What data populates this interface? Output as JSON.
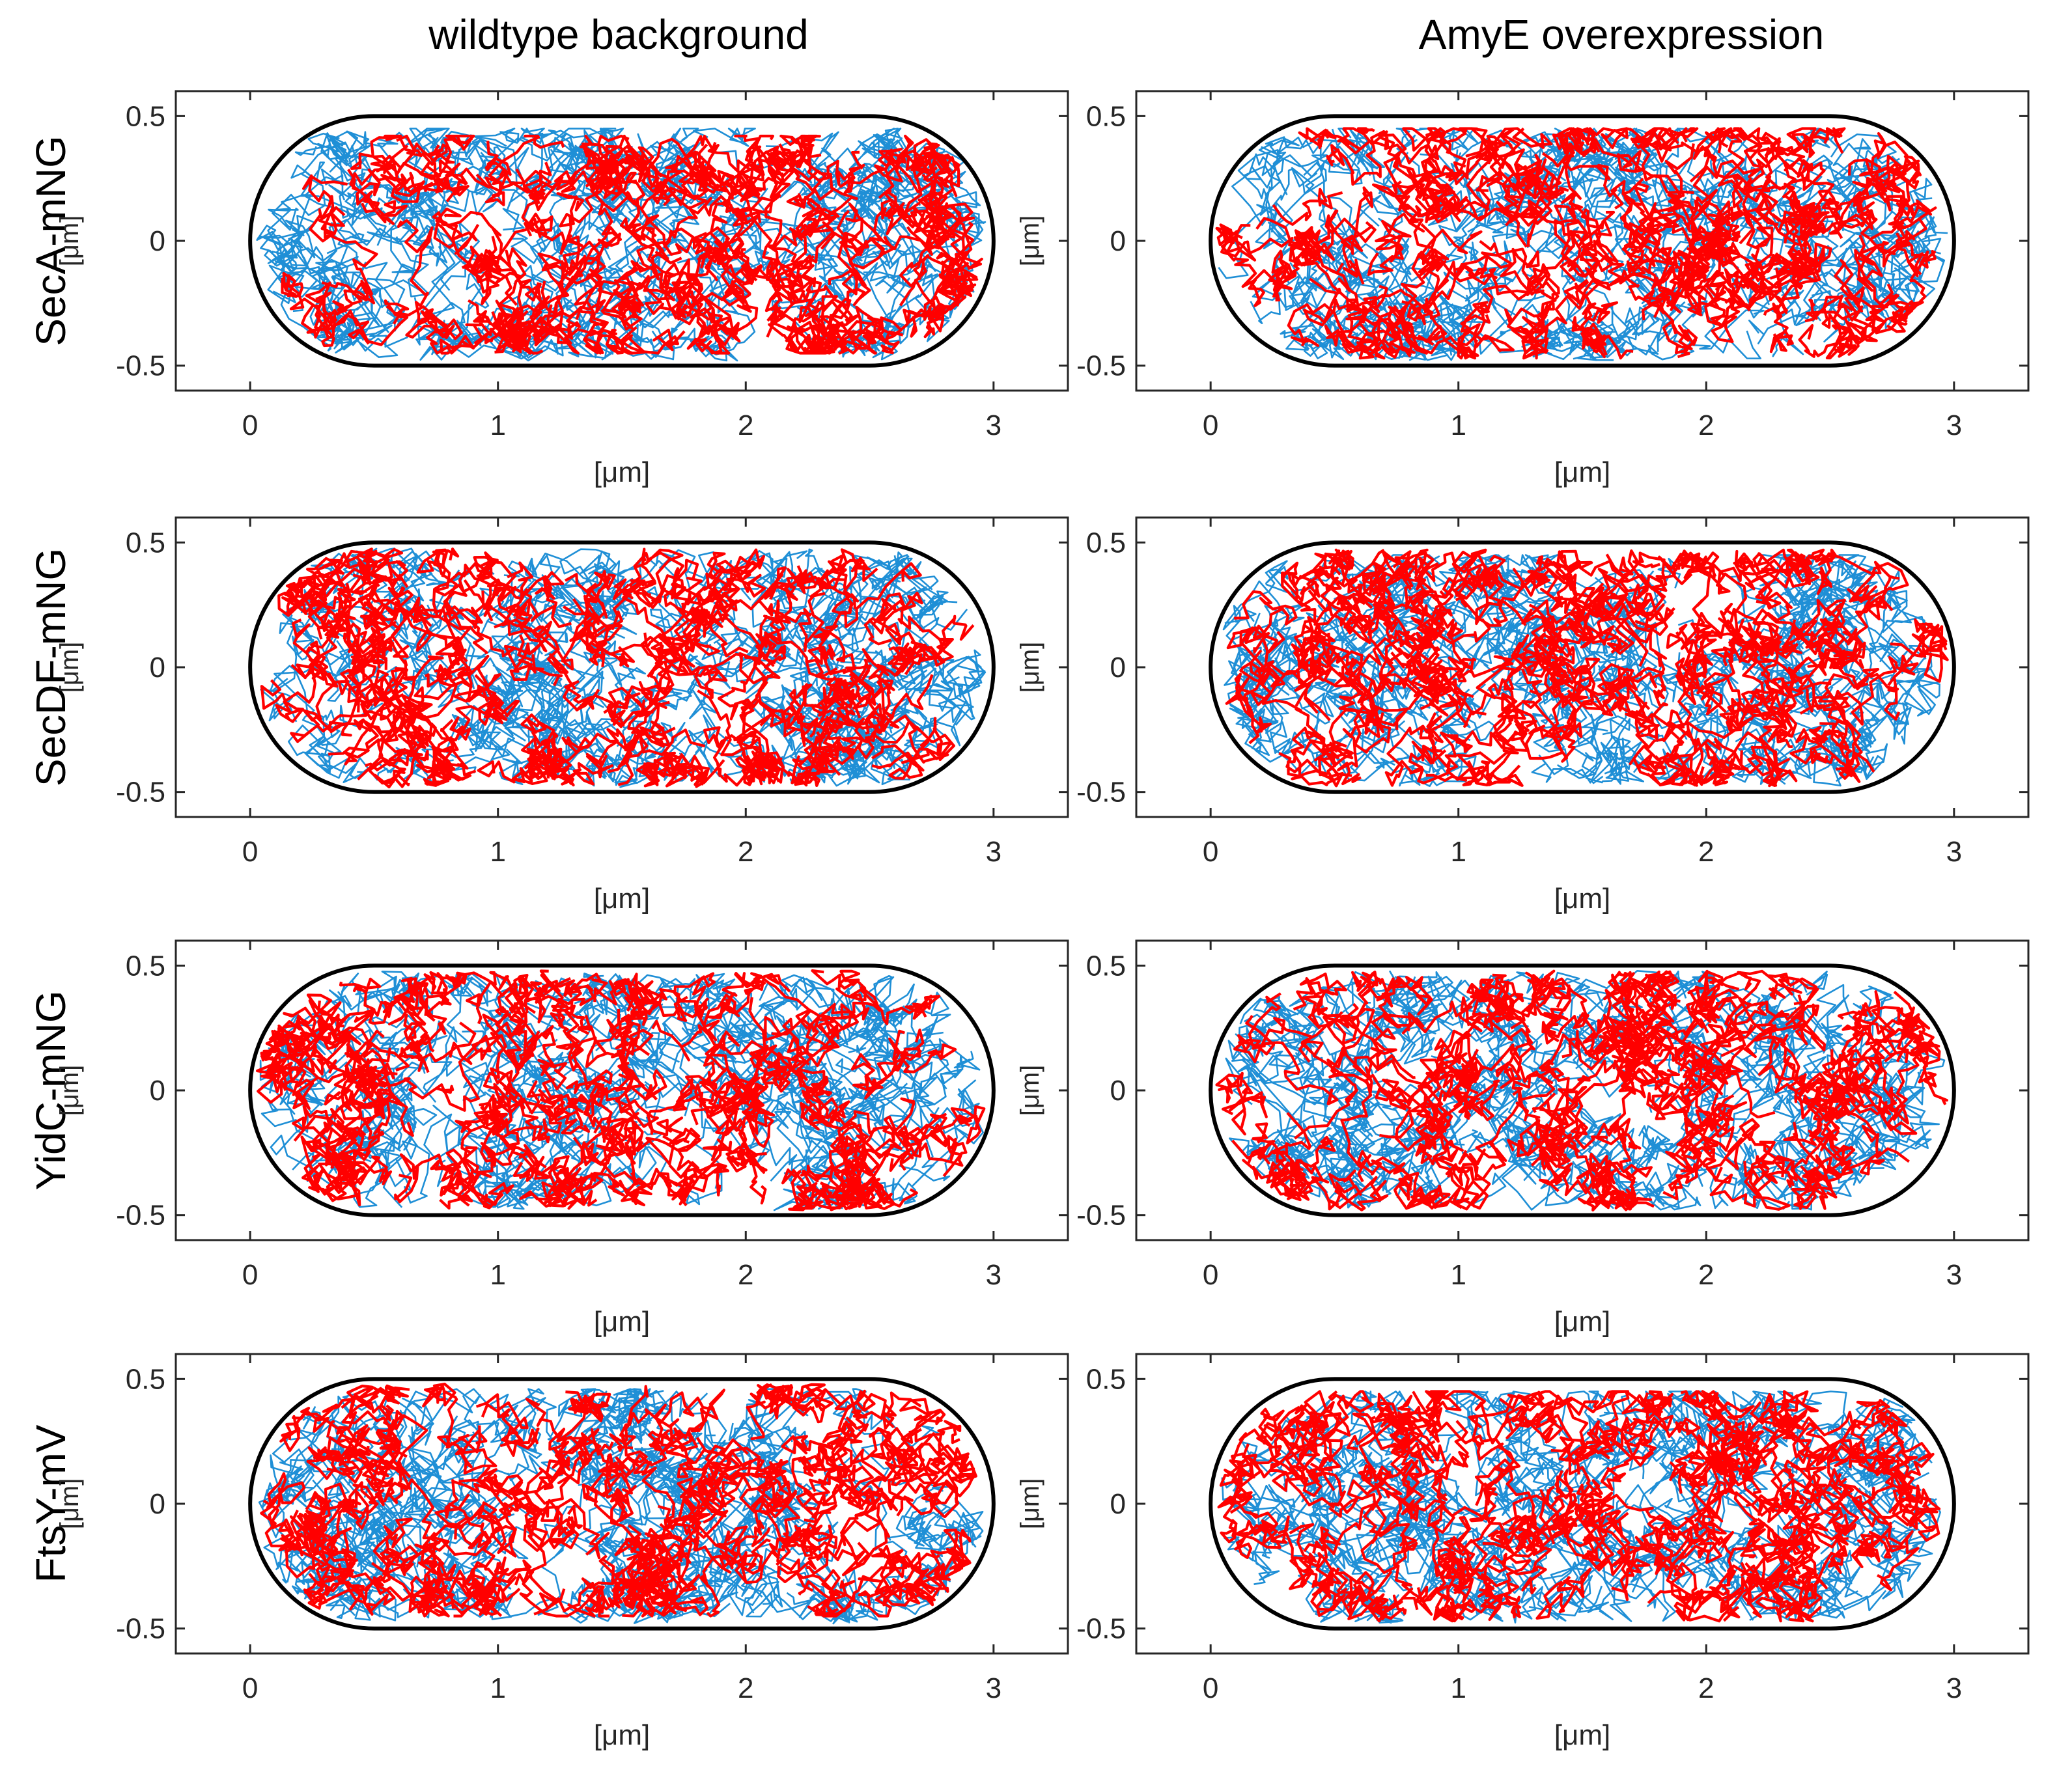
{
  "figure": {
    "column_titles": [
      "wildtype background",
      "AmyE overexpression"
    ],
    "row_labels": [
      "SecA-mNG",
      "SecDF-mNG",
      "YidC-mNG",
      "FtsY-mV"
    ],
    "xlabel": "[μm]",
    "ylabel": "[μm]",
    "colors": {
      "blue": "#1f8fd6",
      "red": "#ff0000",
      "outline": "#000000",
      "axes": "#262626"
    }
  },
  "chart_data": [
    {
      "type": "line",
      "row": "SecA-mNG",
      "column": "wildtype background",
      "xlim": [
        -0.3,
        3.3
      ],
      "ylim": [
        -0.6,
        0.6
      ],
      "xticks": [
        0,
        1,
        2,
        3
      ],
      "yticks": [
        0.5,
        0,
        -0.5
      ],
      "xtick_labels": [
        "0",
        "1",
        "2",
        "3"
      ],
      "ytick_labels": [
        "0.5",
        "0",
        "-0.5"
      ],
      "xlabel": "[μm]",
      "ylabel": "[μm]",
      "cell_outline": {
        "x_range": [
          0,
          3
        ],
        "y_range": [
          -0.5,
          0.5
        ],
        "cap_radius": 0.5
      },
      "series": [
        {
          "name": "blue trajectories",
          "color": "#1f8fd6",
          "x_extent": [
            0.05,
            2.95
          ],
          "y_extent": [
            -0.48,
            0.45
          ]
        },
        {
          "name": "red trajectories",
          "color": "#ff0000",
          "x_extent": [
            0.25,
            2.85
          ],
          "y_extent": [
            -0.45,
            0.42
          ]
        }
      ]
    },
    {
      "type": "line",
      "row": "SecA-mNG",
      "column": "AmyE overexpression",
      "xlim": [
        -0.3,
        3.3
      ],
      "ylim": [
        -0.6,
        0.6
      ],
      "xticks": [
        0,
        1,
        2,
        3
      ],
      "yticks": [
        0.5,
        0,
        -0.5
      ],
      "xtick_labels": [
        "0",
        "1",
        "2",
        "3"
      ],
      "ytick_labels": [
        "0.5",
        "0",
        "-0.5"
      ],
      "xlabel": "[μm]",
      "ylabel": "[μm]",
      "cell_outline": {
        "x_range": [
          0,
          3
        ],
        "y_range": [
          -0.5,
          0.5
        ],
        "cap_radius": 0.5
      },
      "series": [
        {
          "name": "blue trajectories",
          "color": "#1f8fd6",
          "x_extent": [
            0.1,
            2.95
          ],
          "y_extent": [
            -0.48,
            0.45
          ]
        },
        {
          "name": "red trajectories",
          "color": "#ff0000",
          "x_extent": [
            0.1,
            2.9
          ],
          "y_extent": [
            -0.47,
            0.45
          ]
        }
      ]
    },
    {
      "type": "line",
      "row": "SecDF-mNG",
      "column": "wildtype background",
      "xlim": [
        -0.3,
        3.3
      ],
      "ylim": [
        -0.6,
        0.6
      ],
      "xticks": [
        0,
        1,
        2,
        3
      ],
      "yticks": [
        0.5,
        0,
        -0.5
      ],
      "xtick_labels": [
        "0",
        "1",
        "2",
        "3"
      ],
      "ytick_labels": [
        "0.5",
        "0",
        "-0.5"
      ],
      "xlabel": "[μm]",
      "ylabel": "[μm]",
      "cell_outline": {
        "x_range": [
          0,
          3
        ],
        "y_range": [
          -0.5,
          0.5
        ],
        "cap_radius": 0.5
      },
      "series": [
        {
          "name": "blue trajectories",
          "color": "#1f8fd6",
          "x_extent": [
            0.05,
            2.9
          ],
          "y_extent": [
            -0.48,
            0.48
          ]
        },
        {
          "name": "red trajectories",
          "color": "#ff0000",
          "x_extent": [
            0.05,
            2.95
          ],
          "y_extent": [
            -0.48,
            0.48
          ]
        }
      ]
    },
    {
      "type": "line",
      "row": "SecDF-mNG",
      "column": "AmyE overexpression",
      "xlim": [
        -0.3,
        3.3
      ],
      "ylim": [
        -0.6,
        0.6
      ],
      "xticks": [
        0,
        1,
        2,
        3
      ],
      "yticks": [
        0.5,
        0,
        -0.5
      ],
      "xtick_labels": [
        "0",
        "1",
        "2",
        "3"
      ],
      "ytick_labels": [
        "0.5",
        "0",
        "-0.5"
      ],
      "xlabel": "[μm]",
      "ylabel": "[μm]",
      "cell_outline": {
        "x_range": [
          0,
          3
        ],
        "y_range": [
          -0.5,
          0.5
        ],
        "cap_radius": 0.5
      },
      "series": [
        {
          "name": "blue trajectories",
          "color": "#1f8fd6",
          "x_extent": [
            0.1,
            2.9
          ],
          "y_extent": [
            -0.48,
            0.45
          ]
        },
        {
          "name": "red trajectories",
          "color": "#ff0000",
          "x_extent": [
            0.05,
            2.9
          ],
          "y_extent": [
            -0.48,
            0.47
          ]
        }
      ]
    },
    {
      "type": "line",
      "row": "YidC-mNG",
      "column": "wildtype background",
      "xlim": [
        -0.3,
        3.3
      ],
      "ylim": [
        -0.6,
        0.6
      ],
      "xticks": [
        0,
        1,
        2,
        3
      ],
      "yticks": [
        0.5,
        0,
        -0.5
      ],
      "xtick_labels": [
        "0",
        "1",
        "2",
        "3"
      ],
      "ytick_labels": [
        "0.5",
        "0",
        "-0.5"
      ],
      "xlabel": "[μm]",
      "ylabel": "[μm]",
      "cell_outline": {
        "x_range": [
          0,
          3
        ],
        "y_range": [
          -0.5,
          0.5
        ],
        "cap_radius": 0.5
      },
      "series": [
        {
          "name": "blue trajectories",
          "color": "#1f8fd6",
          "x_extent": [
            0.05,
            2.95
          ],
          "y_extent": [
            -0.48,
            0.5
          ]
        },
        {
          "name": "red trajectories",
          "color": "#ff0000",
          "x_extent": [
            0.05,
            2.95
          ],
          "y_extent": [
            -0.48,
            0.48
          ]
        }
      ]
    },
    {
      "type": "line",
      "row": "YidC-mNG",
      "column": "AmyE overexpression",
      "xlim": [
        -0.3,
        3.3
      ],
      "ylim": [
        -0.6,
        0.6
      ],
      "xticks": [
        0,
        1,
        2,
        3
      ],
      "yticks": [
        0.5,
        0,
        -0.5
      ],
      "xtick_labels": [
        "0",
        "1",
        "2",
        "3"
      ],
      "ytick_labels": [
        "0.5",
        "0",
        "-0.5"
      ],
      "xlabel": "[μm]",
      "ylabel": "[μm]",
      "cell_outline": {
        "x_range": [
          0,
          3
        ],
        "y_range": [
          -0.5,
          0.5
        ],
        "cap_radius": 0.5
      },
      "series": [
        {
          "name": "blue trajectories",
          "color": "#1f8fd6",
          "x_extent": [
            0.05,
            2.95
          ],
          "y_extent": [
            -0.48,
            0.48
          ]
        },
        {
          "name": "red trajectories",
          "color": "#ff0000",
          "x_extent": [
            0.05,
            2.95
          ],
          "y_extent": [
            -0.48,
            0.48
          ]
        }
      ]
    },
    {
      "type": "line",
      "row": "FtsY-mV",
      "column": "wildtype background",
      "xlim": [
        -0.3,
        3.3
      ],
      "ylim": [
        -0.6,
        0.6
      ],
      "xticks": [
        0,
        1,
        2,
        3
      ],
      "yticks": [
        0.5,
        0,
        -0.5
      ],
      "xtick_labels": [
        "0",
        "1",
        "2",
        "3"
      ],
      "ytick_labels": [
        "0.5",
        "0",
        "-0.5"
      ],
      "xlabel": "[μm]",
      "ylabel": "[μm]",
      "cell_outline": {
        "x_range": [
          0,
          3
        ],
        "y_range": [
          -0.5,
          0.5
        ],
        "cap_radius": 0.5
      },
      "series": [
        {
          "name": "blue trajectories",
          "color": "#1f8fd6",
          "x_extent": [
            0.05,
            2.95
          ],
          "y_extent": [
            -0.48,
            0.46
          ]
        },
        {
          "name": "red trajectories",
          "color": "#ff0000",
          "x_extent": [
            0.05,
            2.95
          ],
          "y_extent": [
            -0.45,
            0.48
          ]
        }
      ]
    },
    {
      "type": "line",
      "row": "FtsY-mV",
      "column": "AmyE overexpression",
      "xlim": [
        -0.3,
        3.3
      ],
      "ylim": [
        -0.6,
        0.6
      ],
      "xticks": [
        0,
        1,
        2,
        3
      ],
      "yticks": [
        0.5,
        0,
        -0.5
      ],
      "xtick_labels": [
        "0",
        "1",
        "2",
        "3"
      ],
      "ytick_labels": [
        "0.5",
        "0",
        "-0.5"
      ],
      "xlabel": "[μm]",
      "ylabel": "[μm]",
      "cell_outline": {
        "x_range": [
          0,
          3
        ],
        "y_range": [
          -0.5,
          0.5
        ],
        "cap_radius": 0.5
      },
      "series": [
        {
          "name": "blue trajectories",
          "color": "#1f8fd6",
          "x_extent": [
            0.05,
            2.95
          ],
          "y_extent": [
            -0.48,
            0.45
          ]
        },
        {
          "name": "red trajectories",
          "color": "#ff0000",
          "x_extent": [
            0.1,
            2.9
          ],
          "y_extent": [
            -0.47,
            0.45
          ]
        }
      ]
    }
  ]
}
